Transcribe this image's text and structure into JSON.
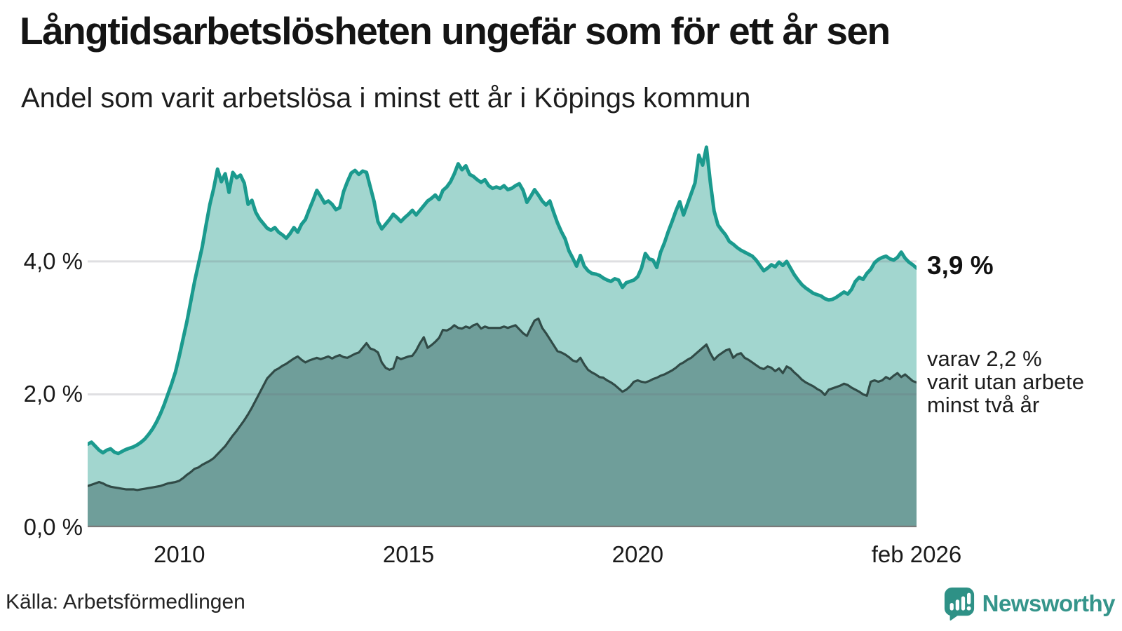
{
  "title": "Långtidsarbetslösheten ungefär som för ett år sen",
  "subtitle": "Andel som varit arbetslösa i minst ett år i Köpings kommun",
  "source": "Källa: Arbetsförmedlingen",
  "logo": {
    "text": "Newsworthy",
    "accent_color": "#2e9186"
  },
  "chart_data": {
    "type": "area",
    "unit": "%",
    "title": "Långtidsarbetslösheten ungefär som för ett år sen",
    "subtitle": "Andel som varit arbetslösa i minst ett år i Köpings kommun",
    "x_start": "2008-01",
    "x_end": "2026-02",
    "ylim": [
      0,
      5.93
    ],
    "grid": "horizontal",
    "yaxis": {
      "ticks": [
        {
          "value": 4.0,
          "label": "4,0 %"
        },
        {
          "value": 2.0,
          "label": "2,0 %"
        },
        {
          "value": 0.0,
          "label": "0,0 %"
        }
      ]
    },
    "xaxis": {
      "start_year_decimal": 2008.0,
      "end_year_decimal": 2026.0833,
      "ticks": [
        {
          "year": 2010.0,
          "label": "2010"
        },
        {
          "year": 2015.0,
          "label": "2015"
        },
        {
          "year": 2020.0,
          "label": "2020"
        },
        {
          "year": 2026.0833,
          "label": "feb 2026"
        }
      ]
    },
    "annotations": {
      "latest_total": "3,9 %",
      "latest_two_years_lines": [
        "varav 2,2 %",
        "varit utan arbete",
        "minst två år"
      ]
    },
    "series": [
      {
        "name": "Andel arbetslösa minst ett år",
        "line_color": "#1b9a8e",
        "fill_color": "#a2d6cf",
        "latest_value": 3.9,
        "values": [
          1.25,
          1.28,
          1.22,
          1.16,
          1.12,
          1.16,
          1.18,
          1.13,
          1.11,
          1.14,
          1.17,
          1.19,
          1.21,
          1.24,
          1.28,
          1.33,
          1.4,
          1.48,
          1.58,
          1.7,
          1.84,
          2.0,
          2.16,
          2.34,
          2.58,
          2.84,
          3.1,
          3.4,
          3.7,
          3.96,
          4.22,
          4.55,
          4.86,
          5.1,
          5.39,
          5.2,
          5.32,
          5.04,
          5.34,
          5.26,
          5.3,
          5.18,
          4.86,
          4.92,
          4.74,
          4.64,
          4.57,
          4.5,
          4.47,
          4.51,
          4.44,
          4.4,
          4.35,
          4.42,
          4.51,
          4.44,
          4.56,
          4.63,
          4.78,
          4.92,
          5.07,
          4.98,
          4.88,
          4.91,
          4.86,
          4.78,
          4.81,
          5.05,
          5.2,
          5.33,
          5.37,
          5.31,
          5.36,
          5.34,
          5.12,
          4.9,
          4.6,
          4.49,
          4.56,
          4.63,
          4.71,
          4.66,
          4.6,
          4.66,
          4.71,
          4.77,
          4.7,
          4.77,
          4.84,
          4.91,
          4.95,
          5.0,
          4.93,
          5.07,
          5.12,
          5.2,
          5.32,
          5.47,
          5.38,
          5.44,
          5.31,
          5.28,
          5.23,
          5.19,
          5.23,
          5.14,
          5.1,
          5.12,
          5.1,
          5.14,
          5.08,
          5.1,
          5.14,
          5.17,
          5.07,
          4.89,
          4.98,
          5.08,
          5.0,
          4.91,
          4.85,
          4.91,
          4.74,
          4.58,
          4.45,
          4.34,
          4.16,
          4.05,
          3.93,
          4.09,
          3.93,
          3.86,
          3.82,
          3.81,
          3.79,
          3.75,
          3.72,
          3.7,
          3.74,
          3.72,
          3.61,
          3.68,
          3.7,
          3.72,
          3.77,
          3.9,
          4.12,
          4.04,
          4.02,
          3.91,
          4.14,
          4.28,
          4.45,
          4.6,
          4.76,
          4.9,
          4.7,
          4.86,
          5.02,
          5.18,
          5.6,
          5.45,
          5.72,
          5.2,
          4.76,
          4.55,
          4.47,
          4.4,
          4.3,
          4.26,
          4.21,
          4.17,
          4.14,
          4.11,
          4.08,
          4.02,
          3.94,
          3.86,
          3.9,
          3.95,
          3.92,
          3.99,
          3.94,
          4.0,
          3.9,
          3.8,
          3.72,
          3.65,
          3.6,
          3.56,
          3.52,
          3.5,
          3.48,
          3.44,
          3.42,
          3.43,
          3.46,
          3.5,
          3.54,
          3.51,
          3.58,
          3.7,
          3.76,
          3.73,
          3.82,
          3.88,
          3.98,
          4.03,
          4.06,
          4.08,
          4.04,
          4.02,
          4.06,
          4.14,
          4.05,
          3.99,
          3.95,
          3.9
        ]
      },
      {
        "name": "Andel arbetslösa minst två år",
        "line_color": "#314b47",
        "fill_color": "#6f9e9a",
        "latest_value": 2.2,
        "values": [
          0.62,
          0.64,
          0.66,
          0.68,
          0.66,
          0.63,
          0.61,
          0.6,
          0.59,
          0.58,
          0.57,
          0.57,
          0.57,
          0.56,
          0.57,
          0.58,
          0.59,
          0.6,
          0.61,
          0.62,
          0.64,
          0.66,
          0.67,
          0.68,
          0.7,
          0.74,
          0.79,
          0.83,
          0.88,
          0.9,
          0.94,
          0.97,
          1.0,
          1.04,
          1.1,
          1.16,
          1.22,
          1.3,
          1.38,
          1.45,
          1.53,
          1.61,
          1.7,
          1.8,
          1.91,
          2.02,
          2.13,
          2.24,
          2.3,
          2.36,
          2.39,
          2.43,
          2.46,
          2.5,
          2.54,
          2.57,
          2.52,
          2.48,
          2.51,
          2.53,
          2.55,
          2.53,
          2.55,
          2.57,
          2.54,
          2.57,
          2.59,
          2.56,
          2.55,
          2.58,
          2.61,
          2.63,
          2.7,
          2.77,
          2.69,
          2.67,
          2.63,
          2.48,
          2.4,
          2.37,
          2.39,
          2.56,
          2.53,
          2.55,
          2.57,
          2.58,
          2.66,
          2.77,
          2.86,
          2.7,
          2.74,
          2.79,
          2.85,
          2.97,
          2.96,
          2.99,
          3.04,
          3.0,
          2.99,
          3.02,
          3.0,
          3.04,
          3.06,
          2.99,
          3.02,
          3.0,
          3.0,
          3.0,
          3.0,
          3.02,
          3.0,
          3.02,
          3.04,
          2.98,
          2.92,
          2.88,
          3.0,
          3.11,
          3.14,
          3.0,
          2.92,
          2.83,
          2.74,
          2.65,
          2.63,
          2.6,
          2.56,
          2.51,
          2.49,
          2.55,
          2.45,
          2.37,
          2.33,
          2.3,
          2.26,
          2.25,
          2.21,
          2.18,
          2.14,
          2.09,
          2.04,
          2.07,
          2.12,
          2.19,
          2.21,
          2.19,
          2.18,
          2.2,
          2.23,
          2.25,
          2.28,
          2.3,
          2.33,
          2.36,
          2.4,
          2.45,
          2.48,
          2.52,
          2.55,
          2.6,
          2.65,
          2.7,
          2.75,
          2.62,
          2.52,
          2.58,
          2.62,
          2.66,
          2.68,
          2.55,
          2.6,
          2.62,
          2.55,
          2.52,
          2.48,
          2.44,
          2.4,
          2.38,
          2.42,
          2.4,
          2.35,
          2.39,
          2.32,
          2.42,
          2.39,
          2.33,
          2.28,
          2.22,
          2.18,
          2.15,
          2.12,
          2.08,
          2.05,
          1.99,
          2.07,
          2.09,
          2.11,
          2.13,
          2.16,
          2.14,
          2.1,
          2.07,
          2.04,
          2.0,
          1.98,
          2.19,
          2.21,
          2.19,
          2.21,
          2.26,
          2.23,
          2.28,
          2.32,
          2.26,
          2.3,
          2.25,
          2.2,
          2.18
        ]
      }
    ]
  }
}
